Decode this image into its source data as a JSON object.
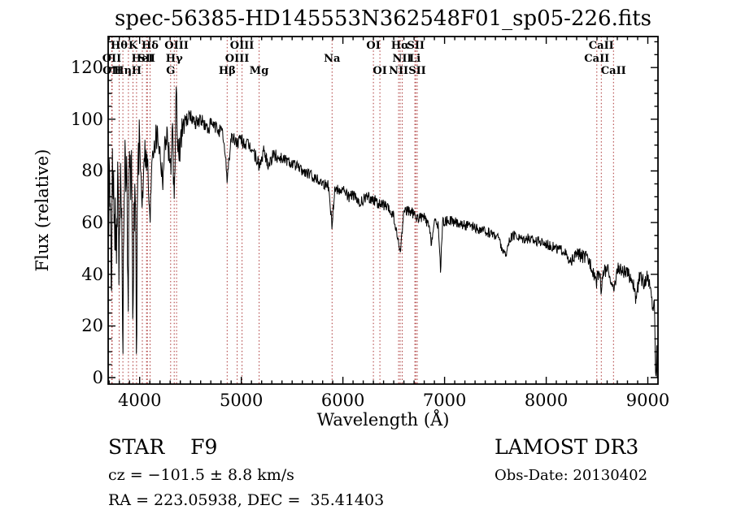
{
  "title": "spec-56385-HD145553N362548F01_sp05-226.fits",
  "annotations": {
    "class_label": "STAR    F9",
    "survey": "LAMOST DR3",
    "cz": "cz = −101.5 ± 8.8 km/s",
    "obs_date": "Obs-Date: 20130402",
    "radec": "RA = 223.05938, DEC =  35.41403"
  },
  "chart_data": {
    "type": "line",
    "title": "spec-56385-HD145553N362548F01_sp05-226.fits",
    "xlabel": "Wavelength (Å)",
    "ylabel": "Flux (relative)",
    "xlim": [
      3690,
      9100
    ],
    "ylim": [
      -2.5,
      132
    ],
    "xticks": [
      4000,
      5000,
      6000,
      7000,
      8000,
      9000
    ],
    "yticks": [
      0,
      20,
      40,
      60,
      80,
      100,
      120
    ],
    "x_minor_step": 100,
    "y_minor_step": 5,
    "grid": false,
    "spectrum_color": "#000000",
    "line_marker_color": "#aa3333",
    "spectral_lines": [
      {
        "label": "OII",
        "wavelength": 3726,
        "row": 2
      },
      {
        "label": "OII",
        "wavelength": 3729,
        "row": 3
      },
      {
        "label": "Hθ",
        "wavelength": 3798,
        "row": 1
      },
      {
        "label": "Hη",
        "wavelength": 3835,
        "row": 3
      },
      {
        "label": "",
        "wavelength": 3889,
        "row": 0
      },
      {
        "label": "K",
        "wavelength": 3934,
        "row": 1
      },
      {
        "label": "H",
        "wavelength": 3969,
        "row": 3
      },
      {
        "label": "HeI",
        "wavelength": 4026,
        "row": 2
      },
      {
        "label": "SII",
        "wavelength": 4068,
        "row": 2
      },
      {
        "label": "",
        "wavelength": 4076,
        "row": 0
      },
      {
        "label": "Hδ",
        "wavelength": 4102,
        "row": 1
      },
      {
        "label": "G",
        "wavelength": 4305,
        "row": 3
      },
      {
        "label": "Hγ",
        "wavelength": 4340,
        "row": 2
      },
      {
        "label": "OIII",
        "wavelength": 4363,
        "row": 1
      },
      {
        "label": "Hβ",
        "wavelength": 4861,
        "row": 3
      },
      {
        "label": "OIII",
        "wavelength": 4959,
        "row": 2
      },
      {
        "label": "OIII",
        "wavelength": 5007,
        "row": 1
      },
      {
        "label": "Mg",
        "wavelength": 5175,
        "row": 3
      },
      {
        "label": "Na",
        "wavelength": 5893,
        "row": 2
      },
      {
        "label": "OI",
        "wavelength": 6300,
        "row": 1
      },
      {
        "label": "OI",
        "wavelength": 6364,
        "row": 3
      },
      {
        "label": "NII",
        "wavelength": 6548,
        "row": 3
      },
      {
        "label": "Hα",
        "wavelength": 6563,
        "row": 1
      },
      {
        "label": "NII",
        "wavelength": 6583,
        "row": 2
      },
      {
        "label": "Li",
        "wavelength": 6708,
        "row": 2
      },
      {
        "label": "SII",
        "wavelength": 6717,
        "row": 1
      },
      {
        "label": "SII",
        "wavelength": 6731,
        "row": 3
      },
      {
        "label": "CaII",
        "wavelength": 8498,
        "row": 2
      },
      {
        "label": "CaII",
        "wavelength": 8542,
        "row": 1
      },
      {
        "label": "CaII",
        "wavelength": 8662,
        "row": 3
      }
    ],
    "noise_regions": [
      [
        3690,
        4000,
        15
      ],
      [
        4000,
        4450,
        6
      ],
      [
        4450,
        5400,
        2.8
      ],
      [
        5400,
        6500,
        2.2
      ],
      [
        6500,
        7600,
        2.0
      ],
      [
        7600,
        8300,
        2.0
      ],
      [
        8300,
        9060,
        2.8
      ],
      [
        9060,
        9100,
        1.0
      ]
    ],
    "series": [
      {
        "name": "spectrum",
        "anchors": [
          [
            3692,
            55
          ],
          [
            3700,
            72
          ],
          [
            3712,
            60
          ],
          [
            3726,
            42
          ],
          [
            3732,
            75
          ],
          [
            3745,
            70
          ],
          [
            3760,
            62
          ],
          [
            3771,
            40
          ],
          [
            3780,
            72
          ],
          [
            3790,
            70
          ],
          [
            3798,
            30
          ],
          [
            3806,
            72
          ],
          [
            3820,
            74
          ],
          [
            3835,
            16
          ],
          [
            3845,
            75
          ],
          [
            3860,
            78
          ],
          [
            3875,
            72
          ],
          [
            3889,
            35
          ],
          [
            3900,
            80
          ],
          [
            3920,
            78
          ],
          [
            3934,
            6
          ],
          [
            3946,
            70
          ],
          [
            3958,
            72
          ],
          [
            3969,
            14
          ],
          [
            3980,
            78
          ],
          [
            4000,
            88
          ],
          [
            4026,
            68
          ],
          [
            4045,
            90
          ],
          [
            4080,
            82
          ],
          [
            4102,
            58
          ],
          [
            4120,
            88
          ],
          [
            4144,
            92
          ],
          [
            4180,
            95
          ],
          [
            4227,
            78
          ],
          [
            4260,
            96
          ],
          [
            4290,
            88
          ],
          [
            4305,
            80
          ],
          [
            4325,
            95
          ],
          [
            4340,
            64
          ],
          [
            4355,
            100
          ],
          [
            4360,
            116
          ],
          [
            4368,
            98
          ],
          [
            4383,
            84
          ],
          [
            4420,
            98
          ],
          [
            4460,
            100
          ],
          [
            4500,
            101
          ],
          [
            4550,
            99
          ],
          [
            4600,
            100
          ],
          [
            4668,
            96
          ],
          [
            4700,
            98
          ],
          [
            4780,
            96
          ],
          [
            4820,
            94
          ],
          [
            4861,
            77
          ],
          [
            4900,
            93
          ],
          [
            4959,
            91
          ],
          [
            5000,
            92
          ],
          [
            5050,
            90
          ],
          [
            5100,
            89
          ],
          [
            5167,
            83
          ],
          [
            5183,
            82
          ],
          [
            5220,
            87
          ],
          [
            5270,
            83
          ],
          [
            5320,
            86
          ],
          [
            5400,
            85
          ],
          [
            5500,
            83
          ],
          [
            5600,
            80
          ],
          [
            5700,
            78
          ],
          [
            5780,
            76
          ],
          [
            5860,
            74
          ],
          [
            5893,
            59
          ],
          [
            5920,
            73
          ],
          [
            6000,
            73
          ],
          [
            6060,
            70
          ],
          [
            6100,
            71
          ],
          [
            6160,
            67
          ],
          [
            6230,
            70
          ],
          [
            6300,
            69
          ],
          [
            6360,
            67
          ],
          [
            6400,
            67
          ],
          [
            6495,
            63
          ],
          [
            6563,
            48
          ],
          [
            6600,
            65
          ],
          [
            6680,
            64
          ],
          [
            6717,
            62
          ],
          [
            6800,
            62
          ],
          [
            6850,
            58
          ],
          [
            6867,
            52
          ],
          [
            6900,
            60
          ],
          [
            6940,
            59
          ],
          [
            6960,
            41
          ],
          [
            6980,
            60
          ],
          [
            7050,
            61
          ],
          [
            7120,
            60
          ],
          [
            7200,
            59
          ],
          [
            7280,
            58
          ],
          [
            7350,
            57
          ],
          [
            7450,
            56
          ],
          [
            7520,
            55
          ],
          [
            7594,
            47
          ],
          [
            7650,
            54
          ],
          [
            7700,
            55
          ],
          [
            7750,
            54
          ],
          [
            7800,
            54
          ],
          [
            7900,
            53
          ],
          [
            8000,
            52
          ],
          [
            8100,
            50
          ],
          [
            8180,
            49
          ],
          [
            8230,
            44
          ],
          [
            8300,
            48
          ],
          [
            8350,
            47
          ],
          [
            8400,
            46
          ],
          [
            8440,
            44
          ],
          [
            8498,
            37
          ],
          [
            8520,
            42
          ],
          [
            8542,
            34
          ],
          [
            8570,
            42
          ],
          [
            8620,
            41
          ],
          [
            8662,
            33
          ],
          [
            8700,
            42
          ],
          [
            8750,
            41
          ],
          [
            8800,
            40
          ],
          [
            8850,
            38
          ],
          [
            8880,
            30
          ],
          [
            8920,
            39
          ],
          [
            8960,
            37
          ],
          [
            9000,
            39
          ],
          [
            9030,
            33
          ],
          [
            9050,
            27
          ],
          [
            9065,
            30
          ],
          [
            9076,
            2
          ],
          [
            9083,
            0
          ],
          [
            9088,
            13
          ],
          [
            9092,
            0
          ],
          [
            9096,
            0
          ]
        ]
      }
    ]
  }
}
